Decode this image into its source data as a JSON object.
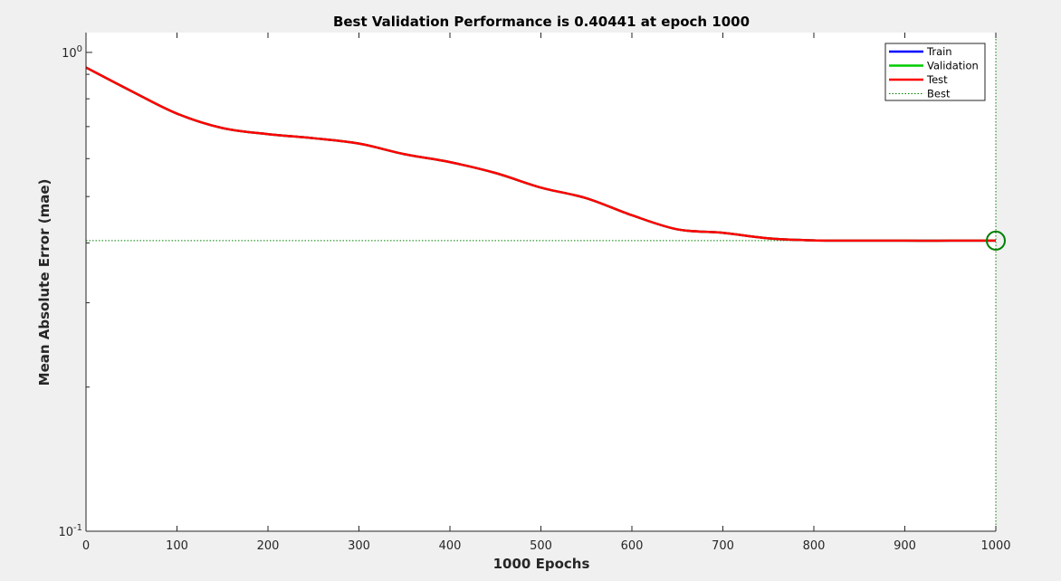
{
  "chart_data": {
    "type": "line",
    "title": "Best Validation Performance is 0.40441 at epoch 1000",
    "xlabel": "1000 Epochs",
    "ylabel": "Mean Absolute Error  (mae)",
    "xlim": [
      0,
      1000
    ],
    "ylim": [
      0.1,
      1.1
    ],
    "yscale": "log",
    "grid": false,
    "legend_position": "top-right",
    "x_ticks": [
      {
        "value": 0,
        "label": "0"
      },
      {
        "value": 100,
        "label": "100"
      },
      {
        "value": 200,
        "label": "200"
      },
      {
        "value": 300,
        "label": "300"
      },
      {
        "value": 400,
        "label": "400"
      },
      {
        "value": 500,
        "label": "500"
      },
      {
        "value": 600,
        "label": "600"
      },
      {
        "value": 700,
        "label": "700"
      },
      {
        "value": 800,
        "label": "800"
      },
      {
        "value": 900,
        "label": "900"
      },
      {
        "value": 1000,
        "label": "1000"
      }
    ],
    "y_ticks": [
      {
        "value": 0.1,
        "base": "10",
        "exp": "-1"
      },
      {
        "value": 1,
        "base": "10",
        "exp": "0"
      }
    ],
    "x": [
      0,
      50,
      100,
      150,
      200,
      250,
      300,
      350,
      400,
      450,
      500,
      550,
      600,
      650,
      700,
      750,
      800,
      850,
      900,
      950,
      1000
    ],
    "series": [
      {
        "name": "Train",
        "color": "#0000ff",
        "values": [
          0.93,
          0.83,
          0.745,
          0.695,
          0.675,
          0.662,
          0.645,
          0.613,
          0.59,
          0.56,
          0.522,
          0.496,
          0.457,
          0.427,
          0.42,
          0.409,
          0.405,
          0.4045,
          0.4044,
          0.4044,
          0.40441
        ]
      },
      {
        "name": "Validation",
        "color": "#00cc00",
        "values": [
          0.93,
          0.83,
          0.745,
          0.695,
          0.675,
          0.662,
          0.645,
          0.613,
          0.59,
          0.56,
          0.522,
          0.496,
          0.457,
          0.427,
          0.42,
          0.409,
          0.405,
          0.4045,
          0.4044,
          0.4044,
          0.40441
        ]
      },
      {
        "name": "Test",
        "color": "#ff0000",
        "values": [
          0.93,
          0.83,
          0.745,
          0.695,
          0.675,
          0.662,
          0.645,
          0.613,
          0.59,
          0.56,
          0.522,
          0.496,
          0.457,
          0.427,
          0.42,
          0.409,
          0.405,
          0.4045,
          0.4044,
          0.4044,
          0.40441
        ]
      }
    ],
    "best": {
      "name": "Best",
      "epoch": 1000,
      "value": 0.40441,
      "color": "#008000"
    },
    "legend": [
      {
        "label": "Train",
        "color": "#0000ff",
        "style": "solid"
      },
      {
        "label": "Validation",
        "color": "#00cc00",
        "style": "solid"
      },
      {
        "label": "Test",
        "color": "#ff0000",
        "style": "solid"
      },
      {
        "label": "Best",
        "color": "#008000",
        "style": "dotted"
      }
    ]
  }
}
